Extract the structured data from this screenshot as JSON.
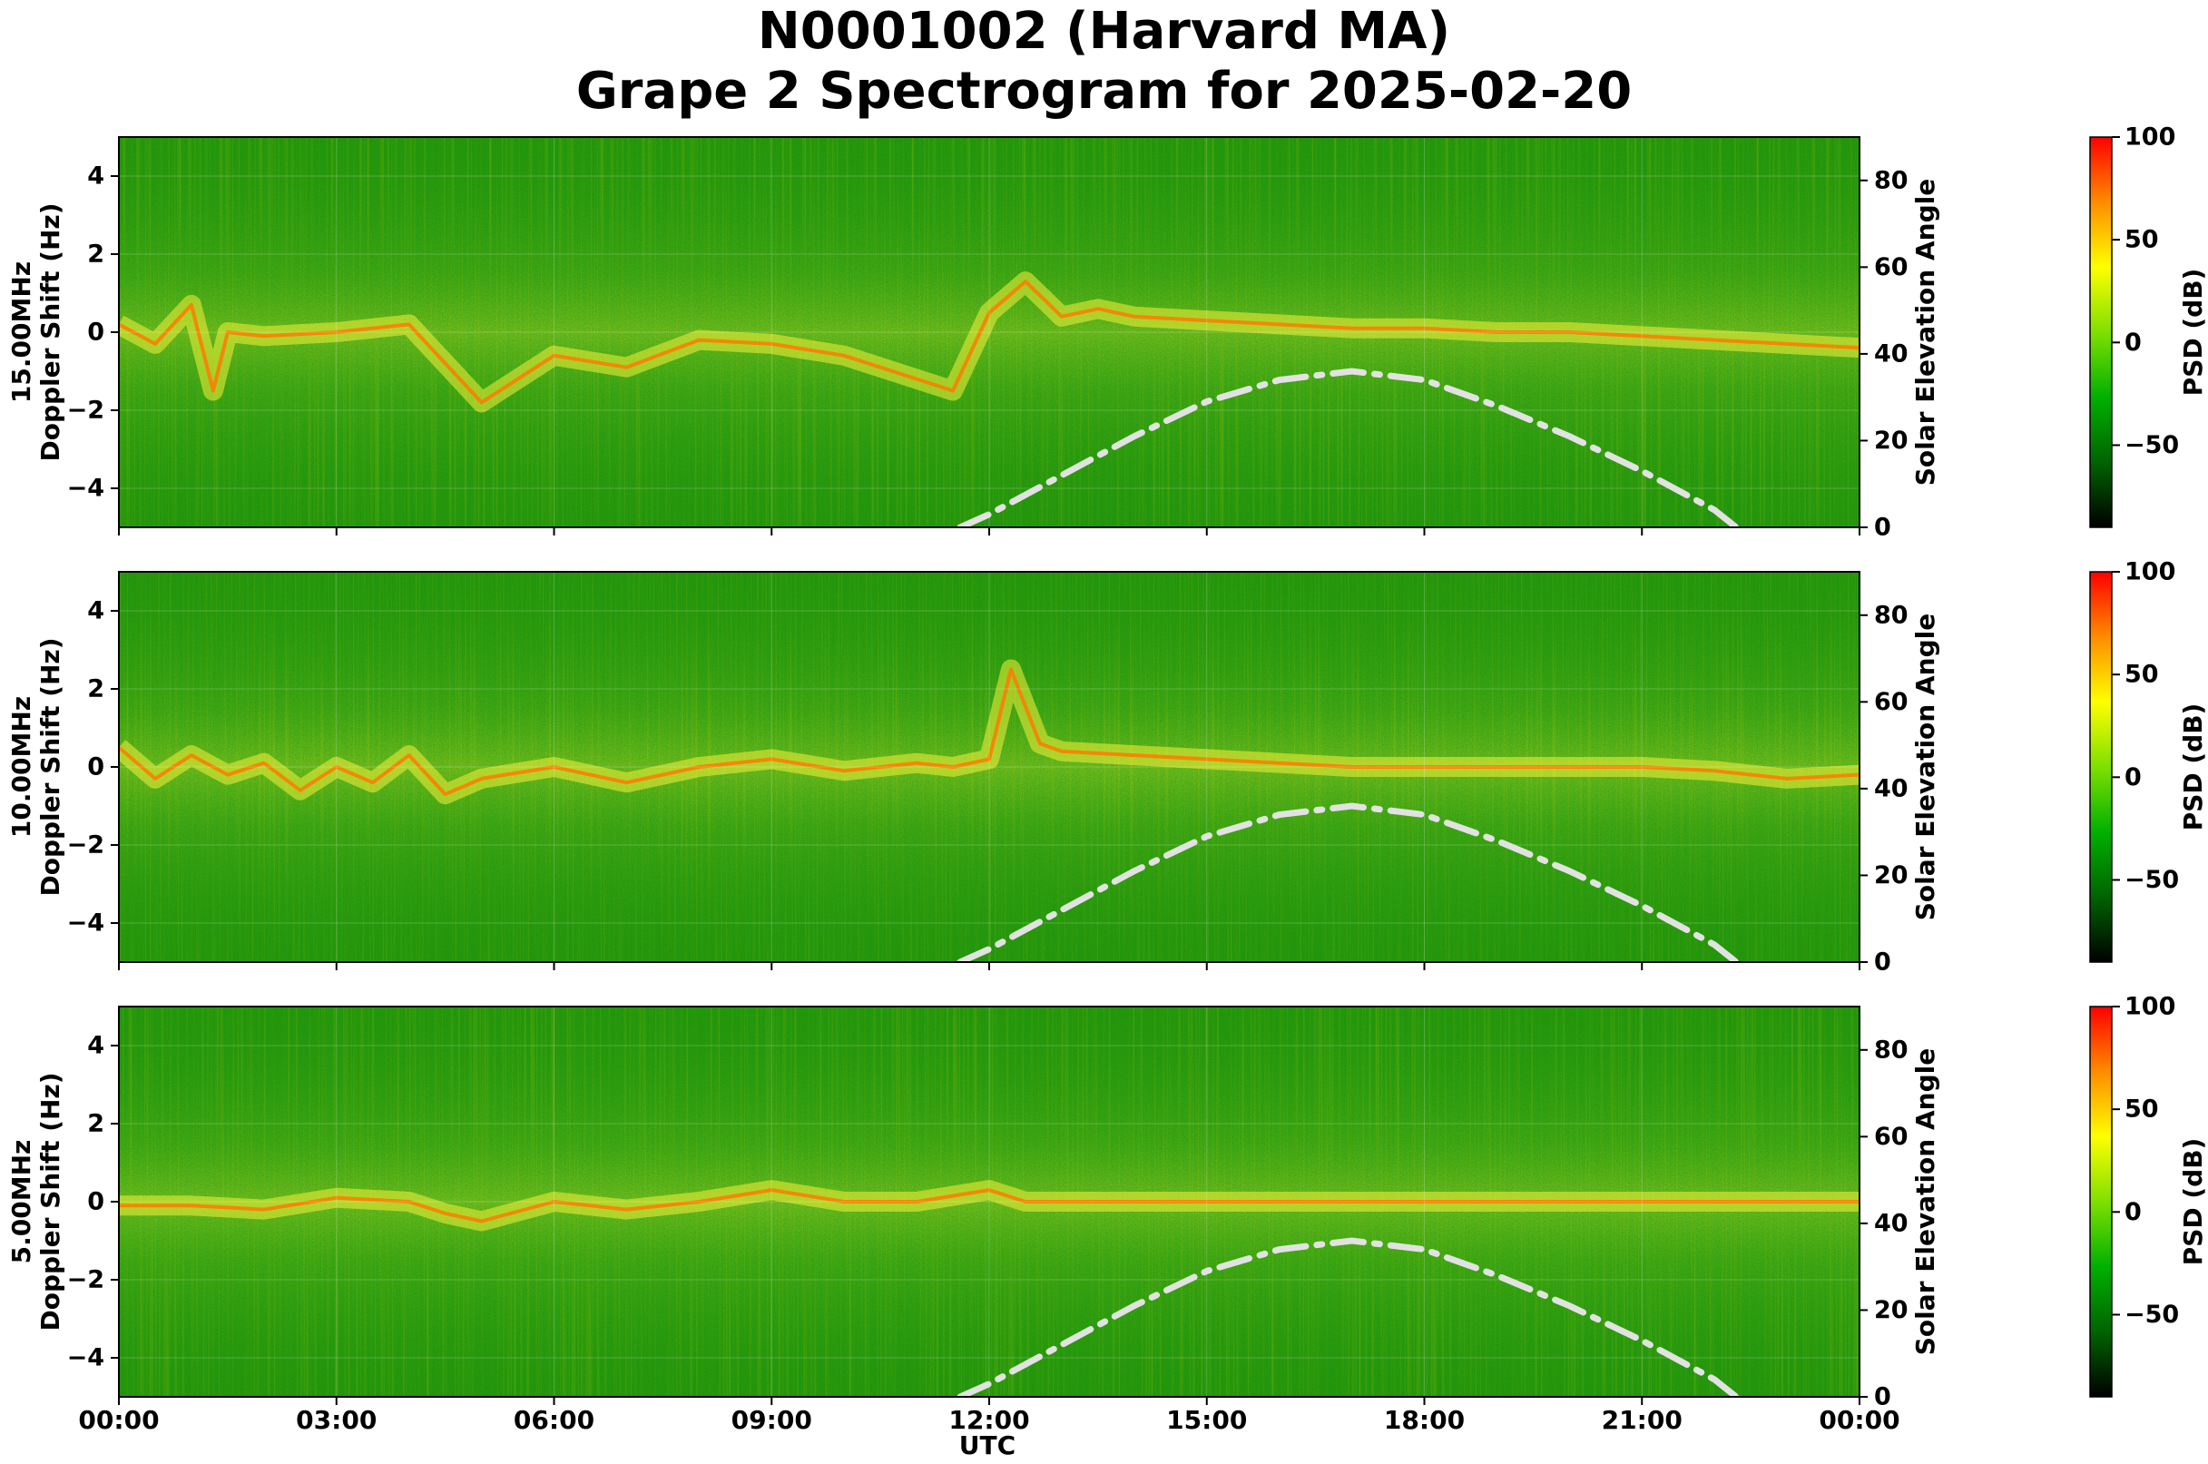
{
  "figure": {
    "title_line1": "N0001002 (Harvard MA)",
    "title_line2": "Grape 2 Spectrogram for 2025-02-20",
    "xlabel": "UTC",
    "x_ticks": [
      "00:00",
      "03:00",
      "06:00",
      "09:00",
      "12:00",
      "15:00",
      "18:00",
      "21:00",
      "00:00"
    ]
  },
  "chart_data": [
    {
      "type": "heatmap",
      "panel_label": "15.00MHz",
      "ylabel": "Doppler Shift (Hz)",
      "y2label": "Solar Elevation Angle",
      "ylim": [
        -5,
        5
      ],
      "y_ticks": [
        4,
        2,
        0,
        -2,
        -4
      ],
      "y2lim": [
        0,
        90
      ],
      "y2_ticks": [
        0,
        20,
        40,
        60,
        80
      ],
      "colorbar": {
        "label": "PSD (dB)",
        "range": [
          -90,
          100
        ],
        "ticks": [
          100,
          50,
          0,
          -50
        ],
        "colors": [
          "#000000",
          "#006400",
          "#00b000",
          "#7fe000",
          "#ffff00",
          "#ff8c00",
          "#ff0000"
        ]
      },
      "doppler_trace": {
        "x_hours": [
          0,
          0.5,
          1,
          1.3,
          1.5,
          2,
          3,
          4,
          5,
          6,
          7,
          8,
          9,
          10,
          11,
          11.5,
          12,
          12.5,
          13,
          13.5,
          14,
          15,
          16,
          17,
          18,
          19,
          20,
          21,
          22,
          23,
          24
        ],
        "hz": [
          0.2,
          -0.3,
          0.7,
          -1.5,
          0.0,
          -0.1,
          0.0,
          0.2,
          -1.8,
          -0.6,
          -0.9,
          -0.2,
          -0.3,
          -0.6,
          -1.2,
          -1.5,
          0.5,
          1.3,
          0.4,
          0.6,
          0.4,
          0.3,
          0.2,
          0.1,
          0.1,
          0.0,
          0.0,
          -0.1,
          -0.2,
          -0.3,
          -0.4
        ]
      },
      "solar_elevation": {
        "x_hours": [
          11.6,
          12,
          13,
          14,
          15,
          16,
          17,
          18,
          19,
          20,
          21,
          22,
          22.3
        ],
        "deg": [
          0,
          3,
          12,
          21,
          29,
          34,
          36,
          34,
          28,
          21,
          13,
          4,
          0
        ]
      }
    },
    {
      "type": "heatmap",
      "panel_label": "10.00MHz",
      "ylabel": "Doppler Shift (Hz)",
      "y2label": "Solar Elevation Angle",
      "ylim": [
        -5,
        5
      ],
      "y_ticks": [
        4,
        2,
        0,
        -2,
        -4
      ],
      "y2lim": [
        0,
        90
      ],
      "y2_ticks": [
        0,
        20,
        40,
        60,
        80
      ],
      "colorbar": {
        "label": "PSD (dB)",
        "range": [
          -90,
          100
        ],
        "ticks": [
          100,
          50,
          0,
          -50
        ],
        "colors": [
          "#000000",
          "#006400",
          "#00b000",
          "#7fe000",
          "#ffff00",
          "#ff8c00",
          "#ff0000"
        ]
      },
      "doppler_trace": {
        "x_hours": [
          0,
          0.5,
          1,
          1.5,
          2,
          2.5,
          3,
          3.5,
          4,
          4.5,
          5,
          6,
          7,
          8,
          9,
          10,
          11,
          11.5,
          12,
          12.3,
          12.7,
          13,
          14,
          15,
          16,
          17,
          18,
          19,
          20,
          21,
          22,
          23,
          24
        ],
        "hz": [
          0.5,
          -0.3,
          0.3,
          -0.2,
          0.1,
          -0.6,
          0.0,
          -0.4,
          0.3,
          -0.7,
          -0.3,
          0.0,
          -0.4,
          0.0,
          0.2,
          -0.1,
          0.1,
          0.0,
          0.2,
          2.5,
          0.6,
          0.4,
          0.3,
          0.2,
          0.1,
          0.0,
          0.0,
          0.0,
          0.0,
          0.0,
          -0.1,
          -0.3,
          -0.2
        ]
      },
      "solar_elevation": {
        "x_hours": [
          11.6,
          12,
          13,
          14,
          15,
          16,
          17,
          18,
          19,
          20,
          21,
          22,
          22.3
        ],
        "deg": [
          0,
          3,
          12,
          21,
          29,
          34,
          36,
          34,
          28,
          21,
          13,
          4,
          0
        ]
      }
    },
    {
      "type": "heatmap",
      "panel_label": "5.00MHz",
      "ylabel": "Doppler Shift (Hz)",
      "y2label": "Solar Elevation Angle",
      "ylim": [
        -5,
        5
      ],
      "y_ticks": [
        4,
        2,
        0,
        -2,
        -4
      ],
      "y2lim": [
        0,
        90
      ],
      "y2_ticks": [
        0,
        20,
        40,
        60,
        80
      ],
      "colorbar": {
        "label": "PSD (dB)",
        "range": [
          -90,
          100
        ],
        "ticks": [
          100,
          50,
          0,
          -50
        ],
        "colors": [
          "#000000",
          "#006400",
          "#00b000",
          "#7fe000",
          "#ffff00",
          "#ff8c00",
          "#ff0000"
        ]
      },
      "doppler_trace": {
        "x_hours": [
          0,
          1,
          2,
          3,
          4,
          4.5,
          5,
          6,
          7,
          8,
          9,
          10,
          11,
          12,
          12.5,
          13,
          15,
          18,
          21,
          23,
          24
        ],
        "hz": [
          -0.1,
          -0.1,
          -0.2,
          0.1,
          0.0,
          -0.3,
          -0.5,
          0.0,
          -0.2,
          0.0,
          0.3,
          0.0,
          0.0,
          0.3,
          0.0,
          0.0,
          0.0,
          0.0,
          0.0,
          0.0,
          0.0
        ]
      },
      "solar_elevation": {
        "x_hours": [
          11.6,
          12,
          13,
          14,
          15,
          16,
          17,
          18,
          19,
          20,
          21,
          22,
          22.3
        ],
        "deg": [
          0,
          3,
          12,
          21,
          29,
          34,
          36,
          34,
          28,
          21,
          13,
          4,
          0
        ]
      }
    }
  ]
}
